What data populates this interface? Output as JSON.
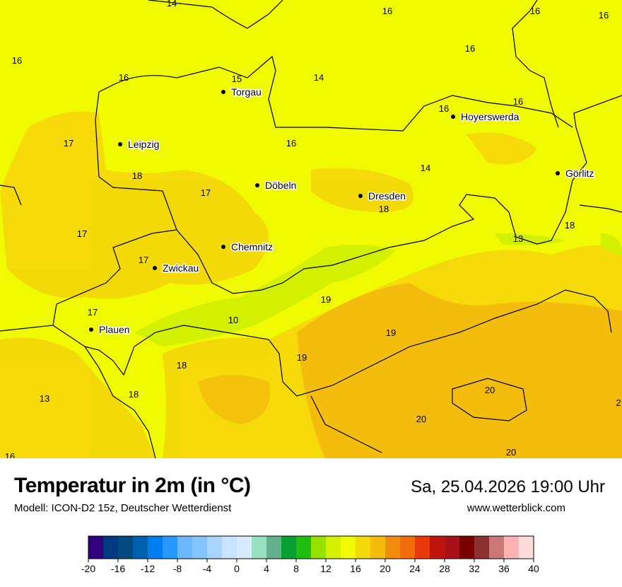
{
  "header": {
    "title": "Temperatur in 2m (in °C)",
    "model": "Modell: ICON-D2 15z, Deutscher Wetterdienst",
    "datetime": "Sa, 25.04.2026 19:00 Uhr",
    "website": "www.wetterblick.com"
  },
  "map": {
    "cities": [
      "Torgau",
      "Leipzig",
      "Döbeln",
      "Dresden",
      "Hoyerswerda",
      "Görlitz",
      "Chemnitz",
      "Zwickau",
      "Plauen"
    ],
    "temperature_labels": [
      "14",
      "16",
      "16",
      "16",
      "16",
      "16",
      "15",
      "14",
      "16",
      "16",
      "16",
      "17",
      "16",
      "18",
      "17",
      "14",
      "18",
      "13",
      "18",
      "17",
      "17",
      "19",
      "19",
      "17",
      "10",
      "19",
      "18",
      "13",
      "18",
      "20",
      "20",
      "20",
      "16",
      "2"
    ],
    "colors": {
      "t14_16": "#f0fa00",
      "t16_18": "#f5d80a",
      "t18_20": "#f4bc0c",
      "t12_14": "#d2f000",
      "border": "#000000"
    }
  },
  "legend": {
    "ticks": [
      "-20",
      "-16",
      "-12",
      "-8",
      "-4",
      "0",
      "4",
      "8",
      "12",
      "16",
      "20",
      "24",
      "28",
      "32",
      "36",
      "40"
    ],
    "colors": [
      "#32007f",
      "#003a80",
      "#004a80",
      "#0060b0",
      "#0080f0",
      "#2898ff",
      "#6cb8ff",
      "#84c4ff",
      "#a8d4ff",
      "#c8e4ff",
      "#d8ebff",
      "#98e0c0",
      "#64b08c",
      "#08a030",
      "#20be10",
      "#98e000",
      "#d2f000",
      "#f0fa00",
      "#f5d80a",
      "#f4bc0c",
      "#f28c0c",
      "#f26c0c",
      "#e8380c",
      "#be1410",
      "#aa1018",
      "#780000",
      "#8c3030",
      "#c87878",
      "#ffb4b4",
      "#ffdcdc"
    ]
  }
}
